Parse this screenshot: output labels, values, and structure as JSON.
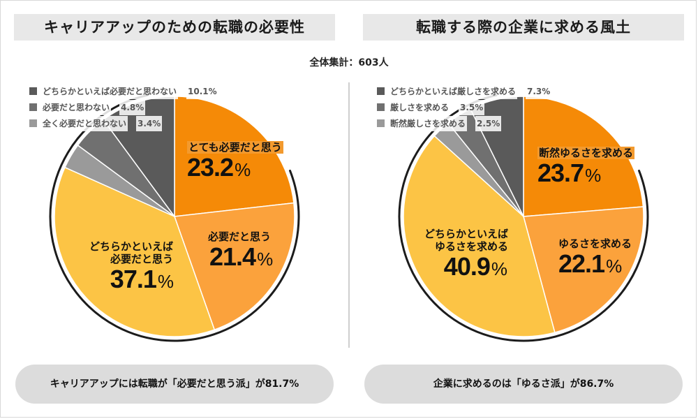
{
  "total_label": "全体集計：603人",
  "left": {
    "title": "キャリアアップのための転職の必要性",
    "summary": "キャリアアップには転職が「必要だと思う派」が81.7%",
    "labels": {
      "s1": {
        "name": "とても必要だと思う",
        "value": "23.2"
      },
      "s2": {
        "name": "必要だと思う",
        "value": "21.4"
      },
      "s3": {
        "name1": "どちらかといえば",
        "name2": "必要だと思う",
        "value": "37.1"
      }
    },
    "legend": [
      {
        "label": "どちらかといえば必要だと思わない",
        "pct": "10.1%"
      },
      {
        "label": "必要だと思わない",
        "pct": "4.8%"
      },
      {
        "label": "全く必要だと思わない",
        "pct": "3.4%"
      }
    ]
  },
  "right": {
    "title": "転職する際の企業に求める風土",
    "summary": "企業に求めるのは「ゆるさ派」が86.7%",
    "labels": {
      "s1": {
        "name": "断然ゆるさを求める",
        "value": "23.7"
      },
      "s2": {
        "name": "ゆるさを求める",
        "value": "22.1"
      },
      "s3": {
        "name1": "どちらかといえば",
        "name2": "ゆるさを求める",
        "value": "40.9"
      }
    },
    "legend": [
      {
        "label": "どちらかといえば厳しさを求める",
        "pct": "7.3%"
      },
      {
        "label": "厳しさを求める",
        "pct": "3.5%"
      },
      {
        "label": "断然厳しさを求める",
        "pct": "2.5%"
      }
    ]
  },
  "pct_symbol": "%",
  "colors": {
    "orange": "#f58a07",
    "light_orange": "#fba23c",
    "yellow": "#fcc445",
    "dark_gray": "#5a5a5a",
    "mid_gray": "#707070",
    "light_gray": "#9a9a9a",
    "outline": "#1c1c1c"
  },
  "chart_data": [
    {
      "type": "pie",
      "title": "キャリアアップのための転職の必要性",
      "categories": [
        "とても必要だと思う",
        "必要だと思う",
        "どちらかといえば必要だと思う",
        "全く必要だと思わない",
        "必要だと思わない",
        "どちらかといえば必要だと思わない"
      ],
      "values": [
        23.2,
        21.4,
        37.1,
        3.4,
        4.8,
        10.1
      ],
      "colors": [
        "#f58a07",
        "#fba23c",
        "#fcc445",
        "#9a9a9a",
        "#707070",
        "#5a5a5a"
      ]
    },
    {
      "type": "pie",
      "title": "転職する際の企業に求める風土",
      "categories": [
        "断然ゆるさを求める",
        "ゆるさを求める",
        "どちらかといえばゆるさを求める",
        "断然厳しさを求める",
        "厳しさを求める",
        "どちらかといえば厳しさを求める"
      ],
      "values": [
        23.7,
        22.1,
        40.9,
        2.5,
        3.5,
        7.3
      ],
      "colors": [
        "#f58a07",
        "#fba23c",
        "#fcc445",
        "#9a9a9a",
        "#707070",
        "#5a5a5a"
      ]
    }
  ]
}
